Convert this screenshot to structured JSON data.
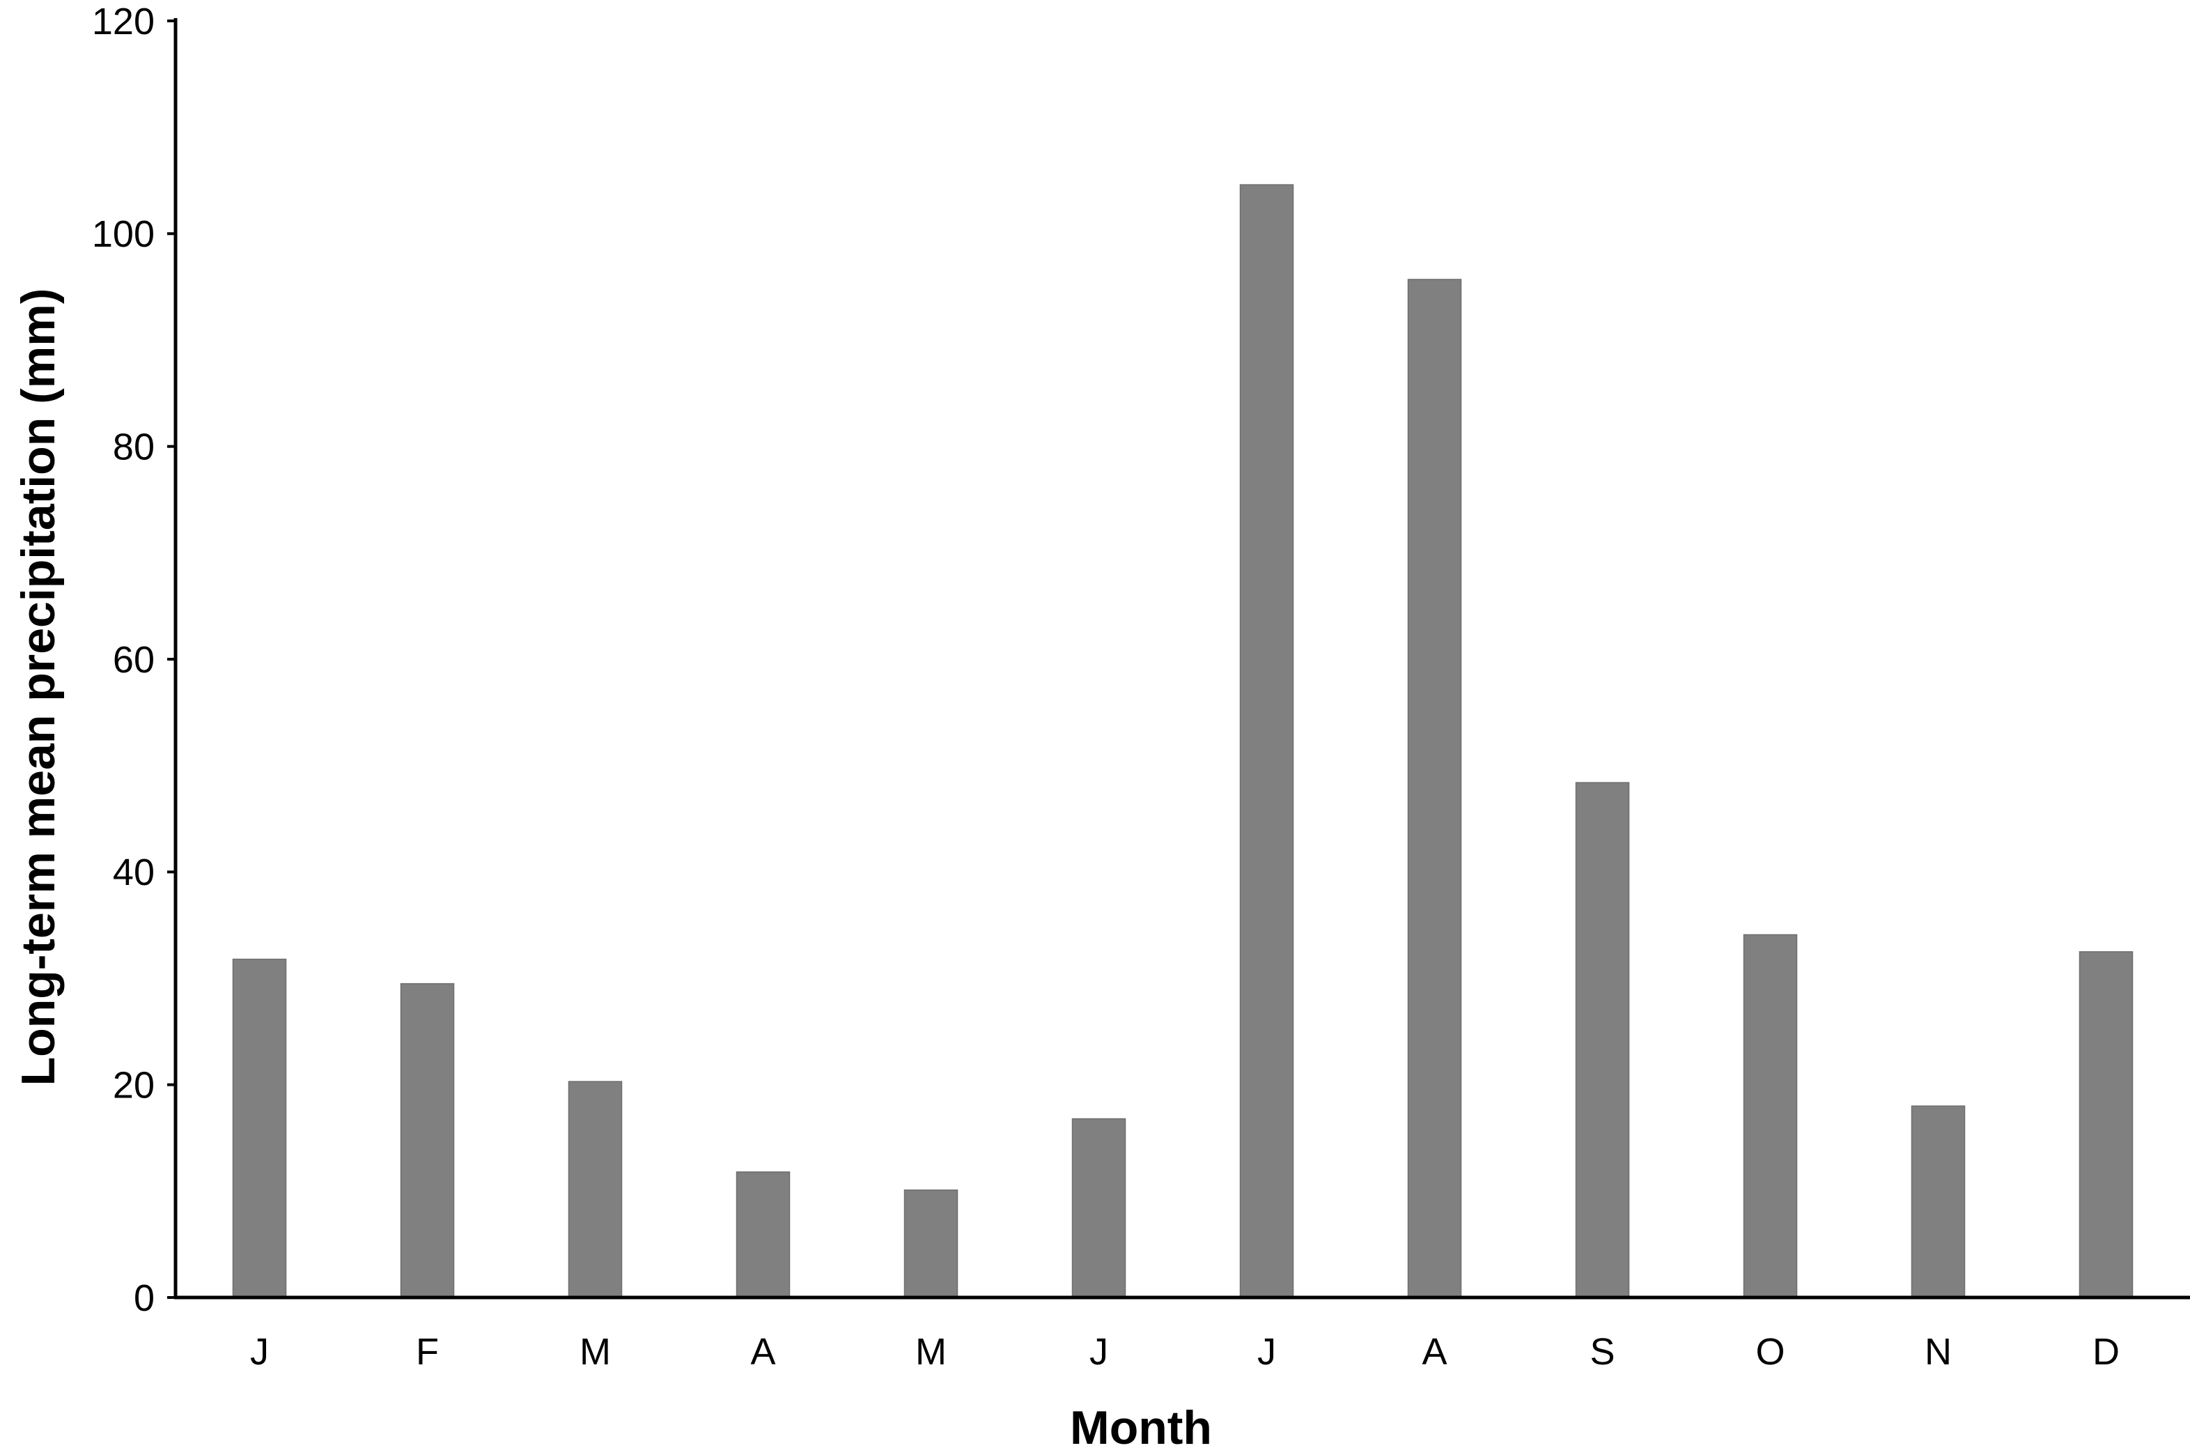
{
  "chart_data": {
    "type": "bar",
    "categories": [
      "J",
      "F",
      "M",
      "A",
      "M",
      "J",
      "J",
      "A",
      "S",
      "O",
      "N",
      "D"
    ],
    "values": [
      31.8,
      29.5,
      20.3,
      11.8,
      10.1,
      16.8,
      104.6,
      95.7,
      48.4,
      34.1,
      18.0,
      32.5
    ],
    "xlabel": "Month",
    "ylabel": "Long-term mean precipitation (mm)",
    "ylim": [
      0,
      120
    ],
    "yticks": [
      0,
      20,
      40,
      60,
      80,
      100,
      120
    ],
    "grid": false,
    "legend": "none",
    "bar_color": "#808080"
  }
}
